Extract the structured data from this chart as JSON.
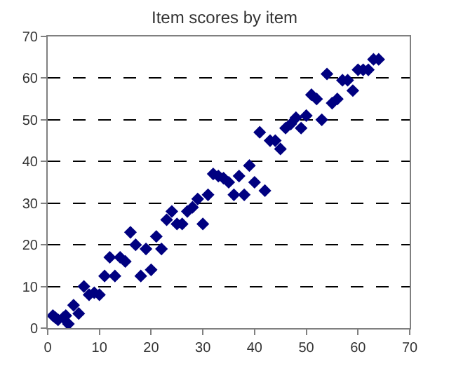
{
  "chart_data": {
    "type": "scatter",
    "title": "Item scores by item",
    "x": [
      1,
      1.5,
      2,
      3,
      3.5,
      4,
      5,
      6,
      7,
      8,
      9,
      10,
      11,
      12,
      13,
      14,
      15,
      16,
      17,
      18,
      19,
      20,
      21,
      22,
      23,
      24,
      25,
      26,
      27,
      28,
      29,
      30,
      31,
      32,
      33,
      34,
      35,
      36,
      37,
      38,
      39,
      40,
      41,
      42,
      43,
      44,
      45,
      46,
      47,
      48,
      49,
      50,
      51,
      52,
      53,
      54,
      55,
      56,
      57,
      58,
      59,
      60,
      61,
      62,
      63,
      64
    ],
    "series": [
      {
        "color": "#000080",
        "values": [
          3,
          2.5,
          2,
          2.5,
          3,
          1,
          5.5,
          3.5,
          10,
          8,
          8.5,
          8,
          12.5,
          17,
          12.5,
          17,
          16,
          23,
          20,
          12.5,
          19,
          14,
          22,
          19,
          26,
          28,
          25,
          25,
          28,
          29,
          31,
          25,
          32,
          37,
          36.5,
          36,
          35,
          32,
          36.5,
          32,
          39,
          35,
          47,
          33,
          45,
          45,
          43,
          48,
          49,
          50.5,
          48,
          51,
          56,
          55,
          50,
          61,
          54,
          55,
          59.5,
          59.5,
          57,
          62,
          62,
          62,
          64.5,
          64.5
        ]
      }
    ],
    "xlim": [
      0,
      70
    ],
    "xticks": [
      0,
      10,
      20,
      30,
      40,
      50,
      60,
      70
    ],
    "ylim": [
      0,
      70
    ],
    "yticks": [
      0,
      10,
      20,
      30,
      40,
      50,
      60,
      70
    ],
    "grid": "y",
    "marker": "diamond",
    "legend": false
  }
}
